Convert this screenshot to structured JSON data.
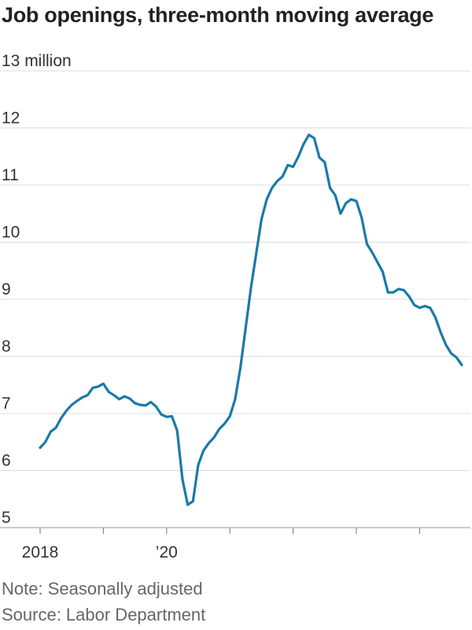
{
  "title": "Job openings, three-month moving average",
  "note": "Note: Seasonally adjusted",
  "source": "Source: Labor Department",
  "chart_data": {
    "type": "line",
    "title": "Job openings, three-month moving average",
    "xlabel": "",
    "ylabel": "",
    "line_color": "#1a7aa8",
    "grid_color": "#dddddd",
    "grid": true,
    "x_range": [
      "2018-01",
      "2024-09"
    ],
    "ylim": [
      5,
      13
    ],
    "y_ticks": [
      {
        "value": 13,
        "label": "13 million"
      },
      {
        "value": 12,
        "label": "12"
      },
      {
        "value": 11,
        "label": "11"
      },
      {
        "value": 10,
        "label": "10"
      },
      {
        "value": 9,
        "label": "9"
      },
      {
        "value": 8,
        "label": "8"
      },
      {
        "value": 7,
        "label": "7"
      },
      {
        "value": 6,
        "label": "6"
      },
      {
        "value": 5,
        "label": "5"
      }
    ],
    "x_ticks": [
      {
        "value": "2018-01",
        "label": "2018"
      },
      {
        "value": "2019-01",
        "label": ""
      },
      {
        "value": "2020-01",
        "label": "’20"
      },
      {
        "value": "2021-01",
        "label": ""
      },
      {
        "value": "2022-01",
        "label": ""
      },
      {
        "value": "2023-01",
        "label": ""
      },
      {
        "value": "2024-01",
        "label": ""
      }
    ],
    "series": [
      {
        "x": [
          "2018-01",
          "2018-02",
          "2018-03",
          "2018-04",
          "2018-05",
          "2018-06",
          "2018-07",
          "2018-08",
          "2018-09",
          "2018-10",
          "2018-11",
          "2018-12",
          "2019-01",
          "2019-02",
          "2019-03",
          "2019-04",
          "2019-05",
          "2019-06",
          "2019-07",
          "2019-08",
          "2019-09",
          "2019-10",
          "2019-11",
          "2019-12",
          "2020-01",
          "2020-02",
          "2020-03",
          "2020-04",
          "2020-05",
          "2020-06",
          "2020-07",
          "2020-08",
          "2020-09",
          "2020-10",
          "2020-11",
          "2020-12",
          "2021-01",
          "2021-02",
          "2021-03",
          "2021-04",
          "2021-05",
          "2021-06",
          "2021-07",
          "2021-08",
          "2021-09",
          "2021-10",
          "2021-11",
          "2021-12",
          "2022-01",
          "2022-02",
          "2022-03",
          "2022-04",
          "2022-05",
          "2022-06",
          "2022-07",
          "2022-08",
          "2022-09",
          "2022-10",
          "2022-11",
          "2022-12",
          "2023-01",
          "2023-02",
          "2023-03",
          "2023-04",
          "2023-05",
          "2023-06",
          "2023-07",
          "2023-08",
          "2023-09",
          "2023-10",
          "2023-11",
          "2023-12",
          "2024-01",
          "2024-02",
          "2024-03",
          "2024-04",
          "2024-05",
          "2024-06",
          "2024-07",
          "2024-08",
          "2024-09"
        ],
        "values": [
          6.4,
          6.5,
          6.68,
          6.75,
          6.92,
          7.05,
          7.15,
          7.22,
          7.28,
          7.32,
          7.45,
          7.47,
          7.52,
          7.38,
          7.32,
          7.25,
          7.3,
          7.26,
          7.18,
          7.15,
          7.14,
          7.2,
          7.12,
          6.98,
          6.94,
          6.95,
          6.7,
          5.85,
          5.4,
          5.46,
          6.1,
          6.35,
          6.48,
          6.58,
          6.73,
          6.82,
          6.95,
          7.25,
          7.8,
          8.5,
          9.2,
          9.8,
          10.4,
          10.75,
          10.95,
          11.07,
          11.15,
          11.35,
          11.32,
          11.5,
          11.72,
          11.88,
          11.82,
          11.48,
          11.4,
          10.95,
          10.82,
          10.5,
          10.68,
          10.75,
          10.72,
          10.43,
          9.97,
          9.82,
          9.65,
          9.48,
          9.12,
          9.12,
          9.18,
          9.16,
          9.05,
          8.9,
          8.85,
          8.88,
          8.85,
          8.68,
          8.42,
          8.2,
          8.05,
          7.98,
          7.85
        ]
      }
    ]
  }
}
